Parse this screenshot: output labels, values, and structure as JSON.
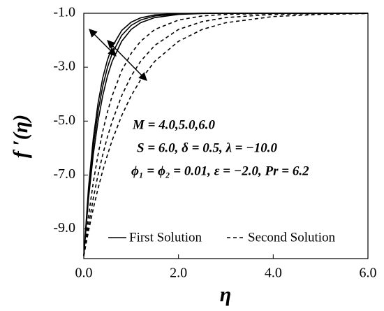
{
  "chart_data": {
    "type": "line",
    "xlabel": "η",
    "ylabel": "f ′(η)",
    "x": [
      0,
      0.1,
      0.2,
      0.3,
      0.4,
      0.5,
      0.6,
      0.8,
      1.0,
      1.2,
      1.5,
      2.0,
      2.5,
      3.0,
      4.0,
      5.0,
      6.0
    ],
    "series": [
      {
        "color": "#000000",
        "dash": false,
        "values": [
          -10,
          -7.47,
          -5.65,
          -4.35,
          -3.4,
          -2.73,
          -2.24,
          -1.64,
          -1.33,
          -1.17,
          -1.06,
          -1.01,
          -1.0,
          -1.0,
          -1.0,
          -1.0,
          -1.0
        ]
      },
      {
        "color": "#000000",
        "dash": false,
        "values": [
          -10,
          -7.67,
          -5.94,
          -4.66,
          -3.71,
          -3.01,
          -2.49,
          -1.82,
          -1.45,
          -1.25,
          -1.1,
          -1.02,
          -1.0,
          -1.0,
          -1.0,
          -1.0,
          -1.0
        ]
      },
      {
        "color": "#000000",
        "dash": false,
        "values": [
          -10,
          -7.87,
          -6.25,
          -5.01,
          -4.06,
          -3.33,
          -2.78,
          -2.04,
          -1.6,
          -1.35,
          -1.16,
          -1.04,
          -1.01,
          -1.0,
          -1.0,
          -1.0,
          -1.0
        ]
      },
      {
        "color": "#000000",
        "dash": true,
        "values": [
          -10,
          -8.52,
          -7.28,
          -6.25,
          -5.38,
          -4.66,
          -4.06,
          -3.13,
          -2.49,
          -2.04,
          -1.6,
          -1.25,
          -1.1,
          -1.04,
          -1.01,
          -1.0,
          -1.0
        ]
      },
      {
        "color": "#000000",
        "dash": true,
        "values": [
          -10,
          -8.87,
          -7.87,
          -7.0,
          -6.25,
          -5.58,
          -5.01,
          -4.06,
          -3.33,
          -2.78,
          -2.19,
          -1.6,
          -1.31,
          -1.16,
          -1.04,
          -1.01,
          -1.0
        ]
      },
      {
        "color": "#000000",
        "dash": true,
        "values": [
          -10,
          -9.08,
          -8.25,
          -7.51,
          -6.84,
          -6.25,
          -5.71,
          -4.8,
          -4.06,
          -3.47,
          -2.78,
          -2.04,
          -1.6,
          -1.35,
          -1.12,
          -1.04,
          -1.01
        ]
      }
    ],
    "legend": [
      {
        "label": "First Solution",
        "dash": false
      },
      {
        "label": "Second Solution",
        "dash": true
      }
    ],
    "annotations": [
      "M = 4.0,5.0,6.0",
      "S = 6.0, δ = 0.5, λ = −10.0",
      "ϕ₁ = ϕ₂ = 0.01, ε = −2.0, Pr = 6.2"
    ],
    "xlim": [
      0,
      6.0
    ],
    "xticks": [
      {
        "value": 0,
        "label": "0.0"
      },
      {
        "value": 2,
        "label": "2.0"
      },
      {
        "value": 4,
        "label": "4.0"
      },
      {
        "value": 6,
        "label": "6.0"
      }
    ],
    "ylim": [
      -10.1,
      -1.0
    ],
    "yticks": [
      {
        "value": -1,
        "label": "-1.0"
      },
      {
        "value": -3,
        "label": "-3.0"
      },
      {
        "value": -5,
        "label": "-5.0"
      },
      {
        "value": -7,
        "label": "-7.0"
      },
      {
        "value": -9,
        "label": "-9.0"
      }
    ]
  }
}
